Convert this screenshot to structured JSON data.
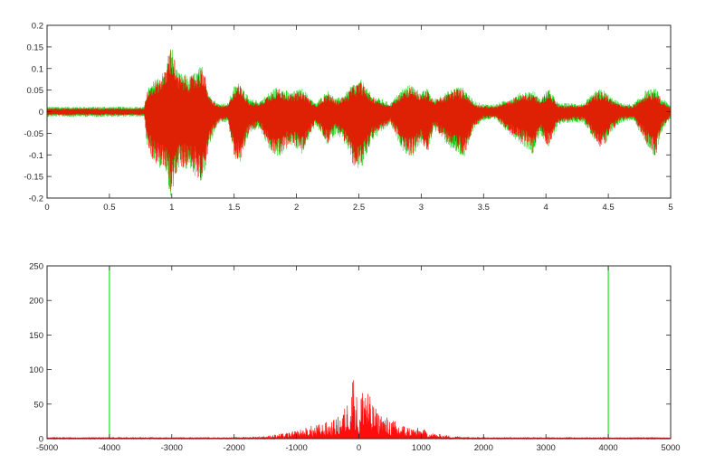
{
  "colors": {
    "background": "#ffffff",
    "axes": "#262626",
    "green_series": "#00d400",
    "red_series": "#ff0000"
  },
  "chart_data": [
    {
      "type": "line",
      "title": "",
      "xlabel": "",
      "ylabel": "",
      "xlim": [
        0,
        5
      ],
      "ylim": [
        -0.2,
        0.2
      ],
      "grid": false,
      "legend": "none",
      "x_ticks": [
        "0",
        "0.5",
        "1",
        "1.5",
        "2",
        "2.5",
        "3",
        "3.5",
        "4",
        "4.5",
        "5"
      ],
      "x_tick_values": [
        0,
        0.5,
        1,
        1.5,
        2,
        2.5,
        3,
        3.5,
        4,
        4.5,
        5
      ],
      "y_ticks": [
        "0.2",
        "0.15",
        "0.1",
        "0.05",
        "0",
        "-0.05",
        "-0.1",
        "-0.15",
        "-0.2"
      ],
      "y_tick_values": [
        0.2,
        0.15,
        0.1,
        0.05,
        0,
        -0.05,
        -0.1,
        -0.15,
        -0.2
      ],
      "series": [
        {
          "color": "#00d400",
          "noise_floor": 0.009,
          "envelope": {
            "x": [
              0,
              0.78,
              0.8,
              0.85,
              0.95,
              0.98,
              1.0,
              1.05,
              1.15,
              1.25,
              1.3,
              1.37,
              1.45,
              1.5,
              1.55,
              1.62,
              1.7,
              1.8,
              1.85,
              1.95,
              2.05,
              2.15,
              2.25,
              2.32,
              2.4,
              2.45,
              2.52,
              2.6,
              2.68,
              2.75,
              2.85,
              2.92,
              3.0,
              3.05,
              3.1,
              3.2,
              3.28,
              3.35,
              3.42,
              3.5,
              3.6,
              3.7,
              3.8,
              3.9,
              3.95,
              4.02,
              4.1,
              4.2,
              4.3,
              4.4,
              4.45,
              4.52,
              4.6,
              4.7,
              4.8,
              4.88,
              4.92,
              5.0
            ],
            "upper": [
              0.012,
              0.012,
              0.05,
              0.07,
              0.1,
              0.15,
              0.155,
              0.09,
              0.085,
              0.11,
              0.04,
              0.02,
              0.02,
              0.06,
              0.07,
              0.03,
              0.025,
              0.05,
              0.06,
              0.045,
              0.055,
              0.02,
              0.05,
              0.03,
              0.045,
              0.065,
              0.075,
              0.04,
              0.03,
              0.02,
              0.055,
              0.065,
              0.045,
              0.055,
              0.03,
              0.045,
              0.06,
              0.055,
              0.025,
              0.018,
              0.018,
              0.03,
              0.045,
              0.05,
              0.03,
              0.055,
              0.02,
              0.02,
              0.02,
              0.048,
              0.055,
              0.035,
              0.02,
              0.018,
              0.05,
              0.055,
              0.035,
              0.015
            ],
            "lower": [
              -0.012,
              -0.012,
              -0.08,
              -0.12,
              -0.14,
              -0.19,
              -0.2,
              -0.13,
              -0.14,
              -0.17,
              -0.08,
              -0.03,
              -0.025,
              -0.11,
              -0.12,
              -0.05,
              -0.04,
              -0.1,
              -0.11,
              -0.08,
              -0.1,
              -0.03,
              -0.08,
              -0.05,
              -0.08,
              -0.13,
              -0.14,
              -0.07,
              -0.05,
              -0.03,
              -0.09,
              -0.11,
              -0.075,
              -0.1,
              -0.04,
              -0.075,
              -0.1,
              -0.11,
              -0.04,
              -0.02,
              -0.02,
              -0.05,
              -0.075,
              -0.1,
              -0.05,
              -0.09,
              -0.03,
              -0.025,
              -0.025,
              -0.075,
              -0.095,
              -0.05,
              -0.025,
              -0.02,
              -0.075,
              -0.11,
              -0.05,
              -0.015
            ]
          }
        },
        {
          "color": "#ff0000",
          "noise_floor": 0.007,
          "envelope": {
            "x": [
              0,
              0.78,
              0.8,
              0.85,
              0.95,
              0.98,
              1.0,
              1.05,
              1.15,
              1.25,
              1.3,
              1.37,
              1.45,
              1.5,
              1.55,
              1.62,
              1.7,
              1.8,
              1.85,
              1.95,
              2.05,
              2.15,
              2.25,
              2.32,
              2.4,
              2.45,
              2.52,
              2.6,
              2.68,
              2.75,
              2.85,
              2.92,
              3.0,
              3.05,
              3.1,
              3.2,
              3.28,
              3.35,
              3.42,
              3.5,
              3.6,
              3.7,
              3.8,
              3.9,
              3.95,
              4.02,
              4.1,
              4.2,
              4.3,
              4.4,
              4.45,
              4.52,
              4.6,
              4.7,
              4.8,
              4.88,
              4.92,
              5.0
            ],
            "upper": [
              0.008,
              0.008,
              0.045,
              0.065,
              0.095,
              0.145,
              0.15,
              0.085,
              0.08,
              0.105,
              0.035,
              0.015,
              0.015,
              0.055,
              0.065,
              0.025,
              0.02,
              0.045,
              0.055,
              0.04,
              0.05,
              0.015,
              0.045,
              0.025,
              0.04,
              0.06,
              0.07,
              0.035,
              0.025,
              0.015,
              0.05,
              0.06,
              0.04,
              0.05,
              0.025,
              0.04,
              0.055,
              0.05,
              0.02,
              0.013,
              0.013,
              0.025,
              0.04,
              0.045,
              0.025,
              0.05,
              0.015,
              0.015,
              0.015,
              0.043,
              0.05,
              0.03,
              0.015,
              0.013,
              0.045,
              0.05,
              0.03,
              0.01
            ],
            "lower": [
              -0.008,
              -0.008,
              -0.075,
              -0.115,
              -0.135,
              -0.18,
              -0.19,
              -0.125,
              -0.135,
              -0.165,
              -0.075,
              -0.025,
              -0.02,
              -0.105,
              -0.115,
              -0.045,
              -0.035,
              -0.095,
              -0.105,
              -0.075,
              -0.095,
              -0.025,
              -0.075,
              -0.045,
              -0.075,
              -0.125,
              -0.135,
              -0.065,
              -0.045,
              -0.025,
              -0.085,
              -0.105,
              -0.07,
              -0.095,
              -0.035,
              -0.07,
              -0.095,
              -0.105,
              -0.035,
              -0.015,
              -0.015,
              -0.045,
              -0.07,
              -0.095,
              -0.045,
              -0.085,
              -0.025,
              -0.02,
              -0.02,
              -0.07,
              -0.09,
              -0.045,
              -0.02,
              -0.015,
              -0.07,
              -0.105,
              -0.045,
              -0.01
            ]
          }
        }
      ]
    },
    {
      "type": "line",
      "title": "",
      "xlabel": "",
      "ylabel": "",
      "xlim": [
        -5000,
        5000
      ],
      "ylim": [
        0,
        250
      ],
      "grid": false,
      "legend": "none",
      "x_ticks": [
        "-5000",
        "-4000",
        "-3000",
        "-2000",
        "-1000",
        "0",
        "1000",
        "2000",
        "3000",
        "4000",
        "5000"
      ],
      "x_tick_values": [
        -5000,
        -4000,
        -3000,
        -2000,
        -1000,
        0,
        1000,
        2000,
        3000,
        4000,
        5000
      ],
      "y_ticks": [
        "250",
        "200",
        "150",
        "100",
        "50",
        "0"
      ],
      "y_tick_values": [
        250,
        200,
        150,
        100,
        50,
        0
      ],
      "series": [
        {
          "color": "#00d400",
          "impulses": [
            {
              "x": -4000,
              "y": 250
            },
            {
              "x": 4000,
              "y": 250
            }
          ]
        },
        {
          "color": "#ff0000",
          "envelope": {
            "x": [
              -5000,
              -2000,
              -1500,
              -1200,
              -1000,
              -800,
              -600,
              -400,
              -300,
              -200,
              -150,
              -100,
              -50,
              0,
              50,
              100,
              150,
              200,
              300,
              400,
              600,
              800,
              1000,
              1200,
              1500,
              2000,
              5000
            ],
            "upper": [
              2,
              2,
              4,
              8,
              12,
              18,
              22,
              28,
              35,
              50,
              70,
              105,
              80,
              25,
              80,
              105,
              70,
              55,
              40,
              35,
              25,
              18,
              15,
              8,
              4,
              2,
              2
            ]
          }
        }
      ]
    }
  ]
}
